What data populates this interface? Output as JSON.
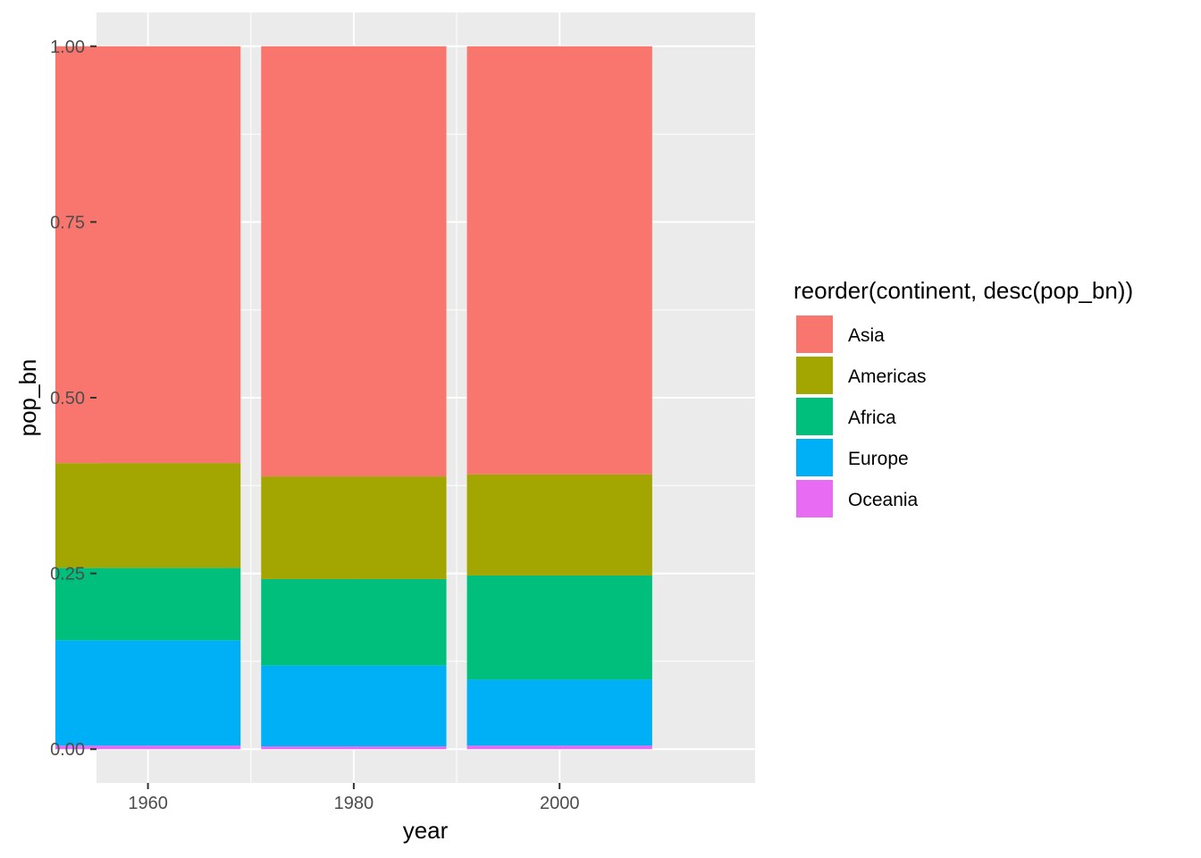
{
  "chart_data": {
    "type": "bar",
    "stacked": true,
    "xlabel": "year",
    "ylabel": "pop_bn",
    "legend_title": "reorder(continent, desc(pop_bn))",
    "legend_position": "right",
    "grid": true,
    "x": [
      1960,
      1980,
      2000
    ],
    "x_ticks": [
      "1960",
      "1980",
      "2000"
    ],
    "xlim": [
      1955,
      2019
    ],
    "ylim": [
      -0.048,
      1.048
    ],
    "y_ticks": [
      "0.00",
      "0.25",
      "0.50",
      "0.75",
      "1.00"
    ],
    "y_tick_values": [
      0,
      0.25,
      0.5,
      0.75,
      1.0
    ],
    "bar_width_years": 18,
    "series": [
      {
        "name": "Asia",
        "color": "#F8766D",
        "values": [
          0.593,
          0.612,
          0.609
        ]
      },
      {
        "name": "Americas",
        "color": "#A3A500",
        "values": [
          0.149,
          0.146,
          0.144
        ]
      },
      {
        "name": "Africa",
        "color": "#00BF7D",
        "values": [
          0.103,
          0.123,
          0.148
        ]
      },
      {
        "name": "Europe",
        "color": "#00B0F6",
        "values": [
          0.15,
          0.115,
          0.094
        ]
      },
      {
        "name": "Oceania",
        "color": "#E76BF3",
        "values": [
          0.005,
          0.004,
          0.005
        ]
      }
    ]
  }
}
